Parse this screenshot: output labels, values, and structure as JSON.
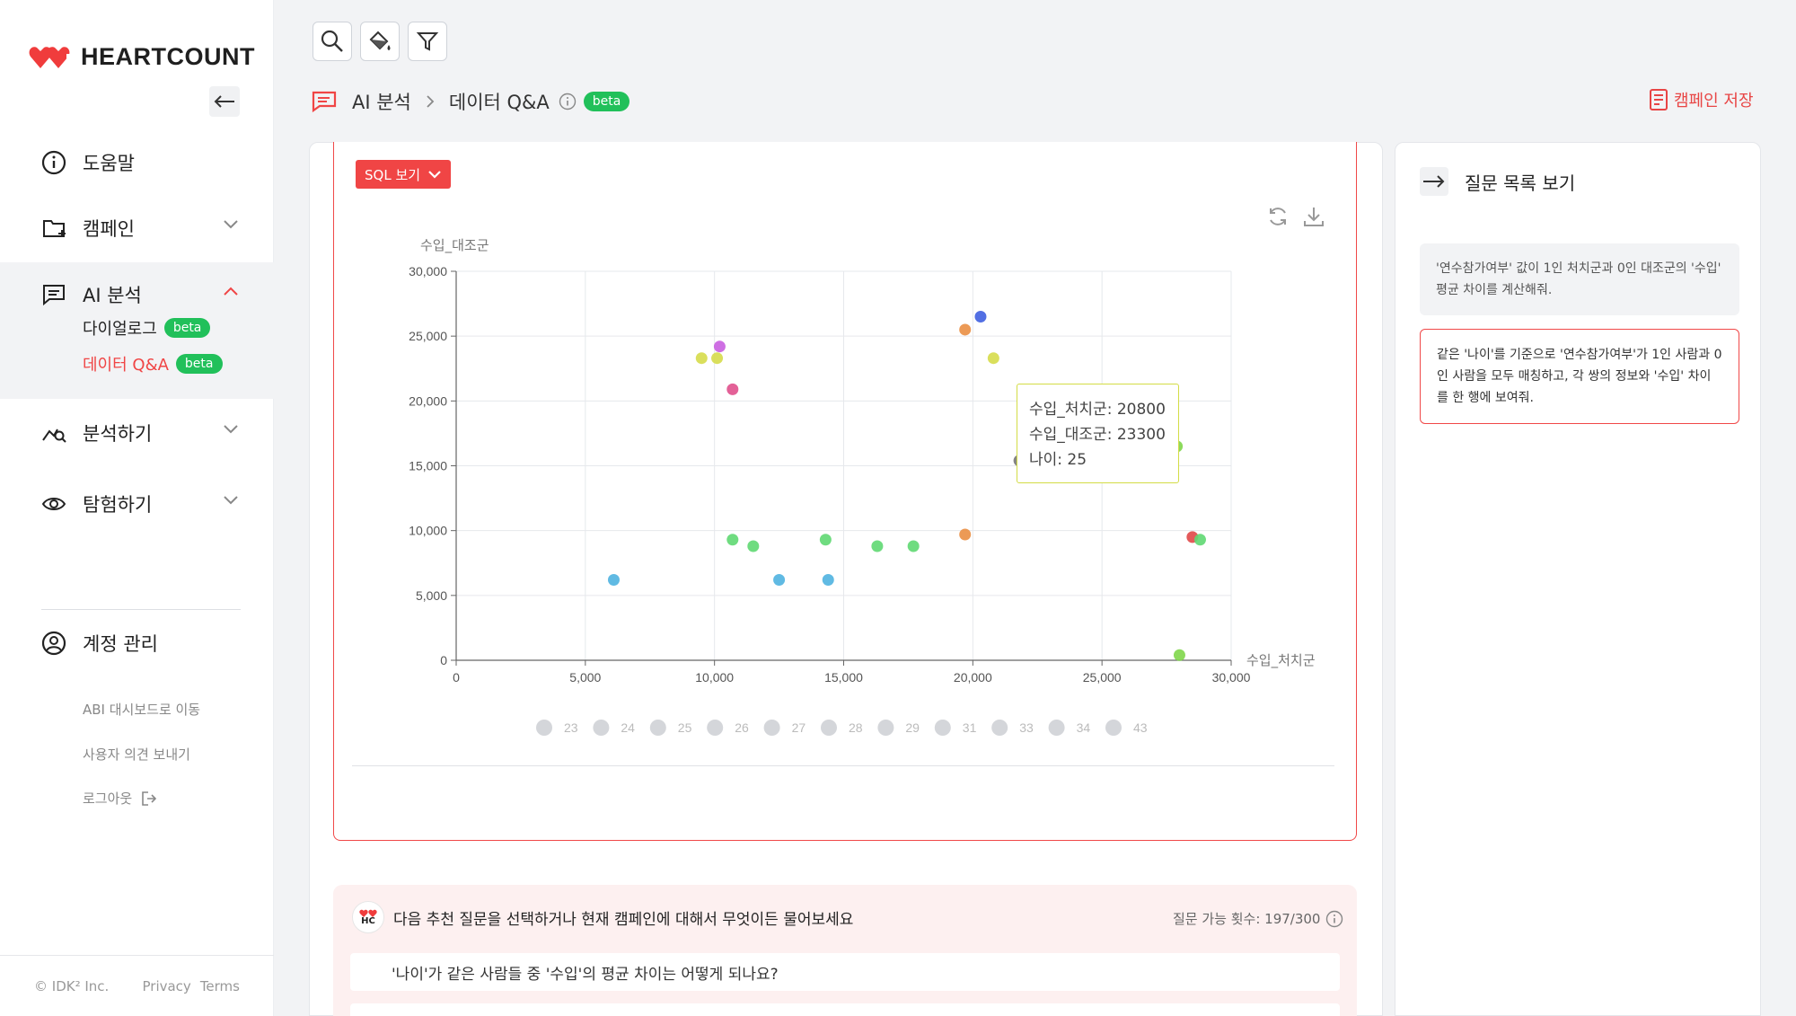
{
  "brand": {
    "name": "HEARTCOUNT",
    "heart_color": "#f03c3c"
  },
  "sidebar": {
    "items": [
      {
        "label": "도움말",
        "icon": "info-circle-icon"
      },
      {
        "label": "캠페인",
        "icon": "folder-add-icon"
      },
      {
        "label": "AI 분석",
        "icon": "chat-lines-icon"
      },
      {
        "label": "분석하기",
        "icon": "chart-search-icon"
      },
      {
        "label": "탐험하기",
        "icon": "eye-icon"
      },
      {
        "label": "계정 관리",
        "icon": "user-circle-icon"
      }
    ],
    "ai_sub": [
      {
        "label": "다이얼로그",
        "badge": "beta"
      },
      {
        "label": "데이터 Q&A",
        "badge": "beta"
      }
    ],
    "links": {
      "abi": "ABI 대시보드로 이동",
      "feedback": "사용자 의견 보내기",
      "logout": "로그아웃"
    },
    "footer": {
      "copyright": "© IDK² Inc.",
      "privacy": "Privacy",
      "terms": "Terms"
    }
  },
  "header": {
    "crumb_root": "AI 분석",
    "crumb_current": "데이터 Q&A",
    "badge": "beta",
    "save_label": "캠페인 저장"
  },
  "sql_button": "SQL 보기",
  "chart_data": {
    "type": "scatter",
    "xlabel": "수입_처치군",
    "ylabel": "수입_대조군",
    "xlim": [
      0,
      30000
    ],
    "ylim": [
      0,
      30000
    ],
    "xticks": [
      "0",
      "5,000",
      "10,000",
      "15,000",
      "20,000",
      "25,000",
      "30,000"
    ],
    "yticks": [
      "0",
      "5,000",
      "10,000",
      "15,000",
      "20,000",
      "25,000",
      "30,000"
    ],
    "grid": true,
    "legend": [
      "23",
      "24",
      "25",
      "26",
      "27",
      "28",
      "29",
      "31",
      "33",
      "34",
      "43"
    ],
    "points": [
      {
        "x": 6100,
        "y": 6200,
        "c": "#4fb3e0"
      },
      {
        "x": 9500,
        "y": 23300,
        "c": "#d6dc4a"
      },
      {
        "x": 10100,
        "y": 23300,
        "c": "#d6dc4a"
      },
      {
        "x": 10200,
        "y": 24200,
        "c": "#c95fe0"
      },
      {
        "x": 10700,
        "y": 20900,
        "c": "#e0508c"
      },
      {
        "x": 10700,
        "y": 9300,
        "c": "#5fd872"
      },
      {
        "x": 11500,
        "y": 8800,
        "c": "#5fd872"
      },
      {
        "x": 12500,
        "y": 6200,
        "c": "#4fb3e0"
      },
      {
        "x": 14300,
        "y": 9300,
        "c": "#5fd872"
      },
      {
        "x": 14400,
        "y": 6200,
        "c": "#4fb3e0"
      },
      {
        "x": 16300,
        "y": 8800,
        "c": "#5fd872"
      },
      {
        "x": 17700,
        "y": 8800,
        "c": "#5fd872"
      },
      {
        "x": 19700,
        "y": 25500,
        "c": "#ea8f44"
      },
      {
        "x": 19700,
        "y": 9700,
        "c": "#ea8f44"
      },
      {
        "x": 20300,
        "y": 26500,
        "c": "#3f5fe0"
      },
      {
        "x": 20800,
        "y": 23300,
        "c": "#d6dc4a"
      },
      {
        "x": 21800,
        "y": 15400,
        "c": "#777777"
      },
      {
        "x": 27900,
        "y": 16500,
        "c": "#7fd64a"
      },
      {
        "x": 28500,
        "y": 9500,
        "c": "#e04848"
      },
      {
        "x": 28800,
        "y": 9300,
        "c": "#5fd872"
      },
      {
        "x": 28000,
        "y": 400,
        "c": "#7fd64a"
      }
    ],
    "tooltip": [
      "수입_처치군: 20800",
      "수입_대조군: 23300",
      "나이: 25"
    ]
  },
  "right_panel": {
    "title": "질문 목록 보기",
    "questions": [
      "'연수참가여부' 값이 1인 처치군과 0인 대조군의 '수입' 평균 차이를 계산해줘.",
      "같은 '나이'를 기준으로 '연수참가여부'가 1인 사람과 0인 사람을 모두 매칭하고, 각 쌍의 정보와 '수입' 차이를 한 행에 보여줘."
    ]
  },
  "suggest": {
    "avatar": "HC",
    "prompt": "다음 추천 질문을 선택하거나 현재 캠페인에 대해서 무엇이든 물어보세요",
    "count": "질문 가능 횟수: 197/300",
    "items": [
      "'나이'가 같은 사람들 중 '수입'의 평균 차이는 어떻게 되나요?"
    ]
  }
}
